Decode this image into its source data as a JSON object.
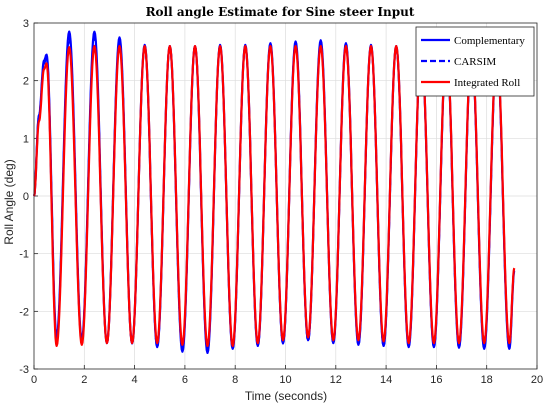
{
  "chart_data": {
    "type": "line",
    "title": "Roll angle Estimate for Sine steer Input",
    "xlabel": "Time (seconds)",
    "ylabel": "Roll Angle (deg)",
    "xlim": [
      0,
      20
    ],
    "ylim": [
      -3,
      3
    ],
    "xticks": [
      "0",
      "2",
      "4",
      "6",
      "8",
      "10",
      "12",
      "14",
      "16",
      "18",
      "20"
    ],
    "yticks": [
      "3",
      "2",
      "1",
      "0",
      "-1",
      "-2",
      "-3"
    ],
    "grid": true,
    "legend_position": "top-right",
    "x": [
      0,
      0.2,
      0.4,
      0.5,
      0.9,
      1.4,
      1.9,
      2.4,
      2.9,
      3.4,
      3.9,
      4.4,
      4.9,
      5.4,
      5.9,
      6.4,
      6.9,
      7.4,
      7.9,
      8.4,
      8.9,
      9.4,
      9.9,
      10.4,
      10.9,
      11.4,
      11.9,
      12.4,
      12.9,
      13.4,
      13.9,
      14.4,
      14.9,
      15.4,
      15.9,
      16.4,
      16.9,
      17.4,
      17.9,
      18.4,
      18.9,
      19.1
    ],
    "series": [
      {
        "name": "Complementary",
        "color": "#0000ff",
        "style": "solid",
        "values": [
          0,
          1.4,
          2.35,
          2.45,
          -2.45,
          2.85,
          -2.5,
          2.85,
          -2.55,
          2.75,
          -2.55,
          2.62,
          -2.62,
          2.6,
          -2.7,
          2.6,
          -2.72,
          2.62,
          -2.65,
          2.62,
          -2.6,
          2.65,
          -2.55,
          2.68,
          -2.5,
          2.7,
          -2.55,
          2.65,
          -2.58,
          2.62,
          -2.6,
          2.6,
          -2.62,
          2.6,
          -2.62,
          2.58,
          -2.63,
          2.55,
          -2.65,
          2.5,
          -2.65,
          -1.3
        ]
      },
      {
        "name": "CARSIM",
        "color": "#0000ff",
        "style": "dashed",
        "values": [
          0,
          1.4,
          2.3,
          2.4,
          -2.5,
          2.75,
          -2.52,
          2.75,
          -2.55,
          2.7,
          -2.56,
          2.6,
          -2.62,
          2.6,
          -2.68,
          2.6,
          -2.7,
          2.6,
          -2.65,
          2.6,
          -2.6,
          2.62,
          -2.56,
          2.65,
          -2.52,
          2.66,
          -2.55,
          2.62,
          -2.58,
          2.6,
          -2.6,
          2.58,
          -2.61,
          2.58,
          -2.62,
          2.56,
          -2.62,
          2.53,
          -2.63,
          2.48,
          -2.63,
          -1.28
        ]
      },
      {
        "name": "Integrated Roll",
        "color": "#ff0000",
        "style": "solid",
        "values": [
          0,
          1.3,
          2.2,
          2.3,
          -2.6,
          2.58,
          -2.58,
          2.6,
          -2.55,
          2.6,
          -2.55,
          2.6,
          -2.55,
          2.6,
          -2.58,
          2.6,
          -2.6,
          2.6,
          -2.6,
          2.6,
          -2.55,
          2.6,
          -2.5,
          2.6,
          -2.45,
          2.6,
          -2.5,
          2.6,
          -2.5,
          2.6,
          -2.52,
          2.6,
          -2.55,
          2.6,
          -2.55,
          2.6,
          -2.55,
          2.58,
          -2.55,
          2.55,
          -2.55,
          -1.25
        ]
      }
    ]
  }
}
